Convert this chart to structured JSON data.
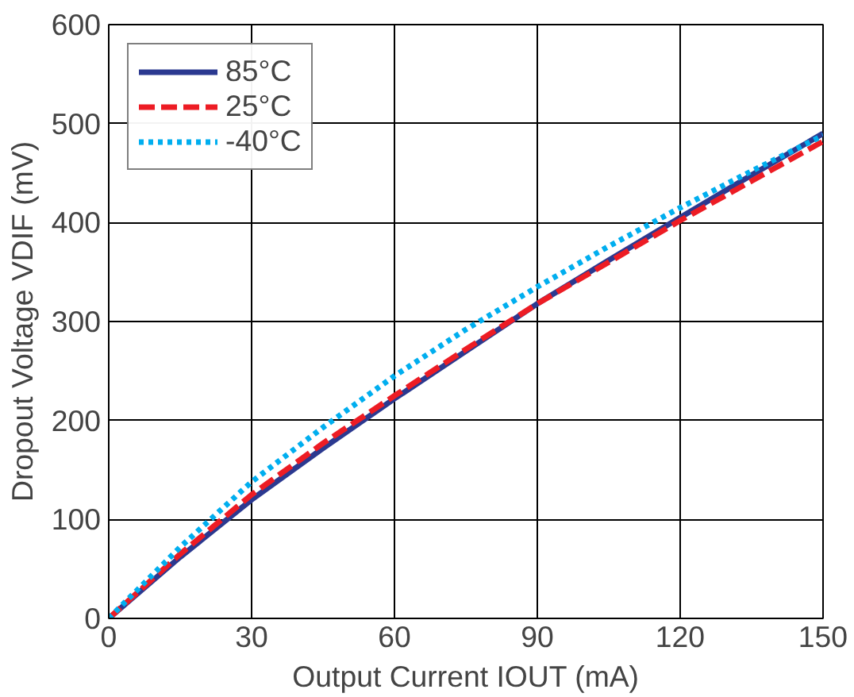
{
  "chart_data": {
    "type": "line",
    "xlabel": "Output Current IOUT (mA)",
    "ylabel": "Dropout Voltage VDIF (mV)",
    "x": [
      0,
      15,
      30,
      45,
      60,
      75,
      90,
      105,
      120,
      135,
      150
    ],
    "series": [
      {
        "name": "85°C",
        "color": "#2b3990",
        "line_style": "solid",
        "values": [
          0,
          62,
          120,
          172,
          222,
          270,
          318,
          362,
          405,
          448,
          490
        ]
      },
      {
        "name": "25°C",
        "color": "#ed1c24",
        "line_style": "dashed",
        "values": [
          0,
          65,
          125,
          177,
          225,
          272,
          318,
          360,
          402,
          442,
          482
        ]
      },
      {
        "name": "-40°C",
        "color": "#00aeef",
        "line_style": "dotted",
        "values": [
          0,
          72,
          138,
          193,
          245,
          292,
          335,
          376,
          415,
          452,
          488
        ]
      }
    ],
    "xlim": [
      0,
      150
    ],
    "ylim": [
      0,
      600
    ],
    "xticks": [
      0,
      30,
      60,
      90,
      120,
      150
    ],
    "yticks": [
      0,
      100,
      200,
      300,
      400,
      500,
      600
    ],
    "grid": true,
    "legend": "top left"
  }
}
